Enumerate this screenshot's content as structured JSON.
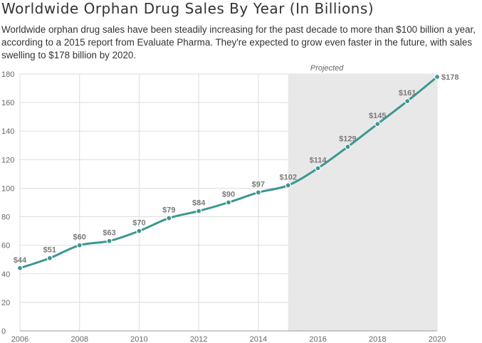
{
  "title": "Worldwide Orphan Drug Sales By Year (In Billions)",
  "subtitle": "Worldwide orphan drug sales have been steadily increasing for the past decade to more than $100 billion a year, according to a 2015 report from Evaluate Pharma. They're expected to grow even faster in the future, with sales swelling to $178 billion by 2020.",
  "chart_data": {
    "type": "line",
    "x": [
      2006,
      2007,
      2008,
      2009,
      2010,
      2011,
      2012,
      2013,
      2014,
      2015,
      2016,
      2017,
      2018,
      2019,
      2020
    ],
    "series": [
      {
        "values": [
          44,
          51,
          60,
          63,
          70,
          79,
          84,
          90,
          97,
          102,
          114,
          129,
          145,
          161,
          178
        ]
      }
    ],
    "data_labels": [
      "$44",
      "$51",
      "$60",
      "$63",
      "$70",
      "$79",
      "$84",
      "$90",
      "$97",
      "$102",
      "$114",
      "$129",
      "$145",
      "$161",
      "$178"
    ],
    "xlim": [
      2006,
      2020
    ],
    "ylim": [
      0,
      180
    ],
    "x_ticks": [
      2006,
      2008,
      2010,
      2012,
      2014,
      2016,
      2018,
      2020
    ],
    "y_ticks": [
      0,
      20,
      40,
      60,
      80,
      100,
      120,
      140,
      160,
      180
    ],
    "projected_region": {
      "from": 2015,
      "to": 2020,
      "label": "Projected",
      "color": "#e8e8e8"
    },
    "line_color": "#3d9690",
    "grid": true
  }
}
